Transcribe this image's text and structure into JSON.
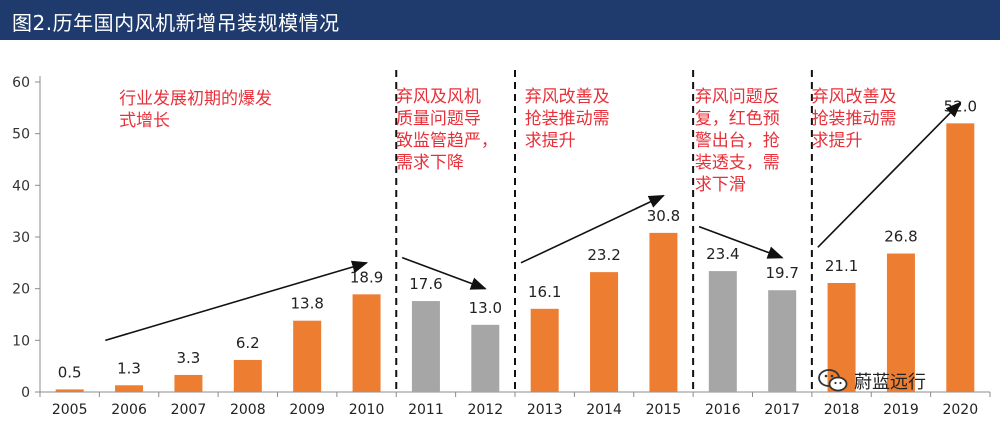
{
  "header": {
    "title": "图2.历年国内风机新增吊装规模情况"
  },
  "colors": {
    "orange": "#ed7d31",
    "gray": "#a6a6a6",
    "annotation": "#e8303a",
    "title_bg": "#1f3b6e"
  },
  "chart_data": {
    "type": "bar",
    "title": "",
    "xlabel": "",
    "ylabel": "",
    "ylim": [
      0,
      60
    ],
    "yticks": [
      "0",
      "10",
      "20",
      "30",
      "40",
      "50",
      "60"
    ],
    "categories": [
      "2005",
      "2006",
      "2007",
      "2008",
      "2009",
      "2010",
      "2011",
      "2012",
      "2013",
      "2014",
      "2015",
      "2016",
      "2017",
      "2018",
      "2019",
      "2020"
    ],
    "values": [
      0.5,
      1.3,
      3.3,
      6.2,
      13.8,
      18.9,
      17.6,
      13.0,
      16.1,
      23.2,
      30.8,
      23.4,
      19.7,
      21.1,
      26.8,
      52.0
    ],
    "value_labels": [
      "0.5",
      "1.3",
      "3.3",
      "6.2",
      "13.8",
      "18.9",
      "17.6",
      "13.0",
      "16.1",
      "23.2",
      "30.8",
      "23.4",
      "19.7",
      "21.1",
      "26.8",
      "52.0"
    ],
    "bar_colors": [
      "orange",
      "orange",
      "orange",
      "orange",
      "orange",
      "orange",
      "gray",
      "gray",
      "orange",
      "orange",
      "orange",
      "gray",
      "gray",
      "orange",
      "orange",
      "orange"
    ],
    "dividers_after": [
      "2010",
      "2012",
      "2015",
      "2017"
    ],
    "annotations": [
      {
        "lines": [
          "行业发展初期的爆发",
          "式增长"
        ],
        "period": "2005-2010"
      },
      {
        "lines": [
          "弃风及风机",
          "质量问题导",
          "致监管趋严，",
          "需求下降"
        ],
        "period": "2011-2012"
      },
      {
        "lines": [
          "弃风改善及",
          "抢装推动需",
          "求提升"
        ],
        "period": "2013-2015"
      },
      {
        "lines": [
          "弃风问题反",
          "复，红色预",
          "警出台，抢",
          "装透支，需",
          "求下滑"
        ],
        "period": "2016-2017"
      },
      {
        "lines": [
          "弃风改善及",
          "抢装推动需",
          "求提升"
        ],
        "period": "2018-2020"
      }
    ],
    "trend_arrows": [
      {
        "from": [
          "2006",
          10
        ],
        "to": [
          "2010",
          25
        ]
      },
      {
        "from": [
          "2011",
          26
        ],
        "to": [
          "2012",
          20
        ]
      },
      {
        "from": [
          "2013",
          25
        ],
        "to": [
          "2015",
          38
        ]
      },
      {
        "from": [
          "2016",
          32
        ],
        "to": [
          "2017",
          26
        ]
      },
      {
        "from": [
          "2018",
          28
        ],
        "to": [
          "2020",
          56
        ]
      }
    ]
  },
  "watermark": {
    "text": "蔚蓝远行"
  }
}
